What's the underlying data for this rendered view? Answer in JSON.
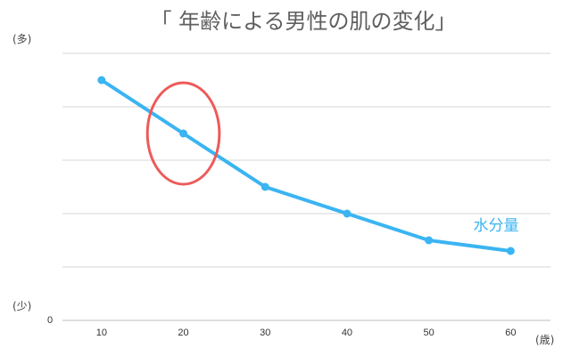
{
  "chart_data": {
    "type": "line",
    "title": "「 年齢による男性の肌の変化」",
    "y_top_label": "(多)",
    "y_bottom_label": "(少)",
    "y_zero_label": "0",
    "x_unit_label": "(歳)",
    "x": [
      10,
      20,
      30,
      40,
      50,
      60
    ],
    "series": [
      {
        "name": "水分量",
        "values": [
          9.0,
          7.0,
          5.0,
          4.0,
          3.0,
          2.6
        ],
        "color": "#3bb4f2"
      }
    ],
    "ylim": [
      0,
      10
    ],
    "grid": true,
    "highlight": {
      "type": "ellipse",
      "x": 20,
      "y": 7.0,
      "rx_data": 4.4,
      "ry_data": 1.9,
      "color": "#ee5a5a"
    },
    "colors": {
      "grid": "#d6d6d6",
      "axis": "#bdbdbd"
    }
  }
}
